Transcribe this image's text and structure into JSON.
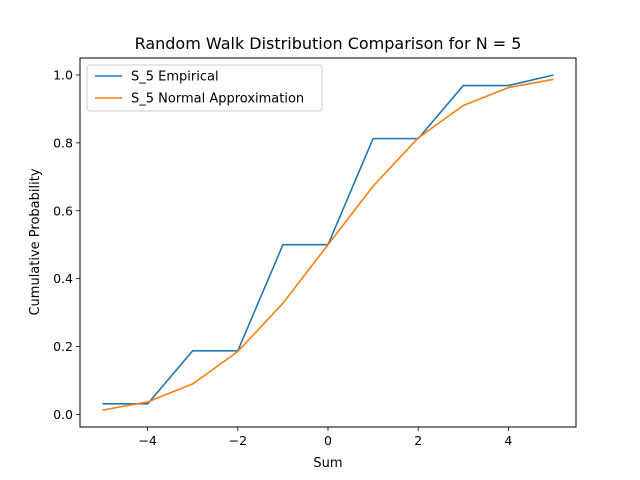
{
  "chart_data": {
    "type": "line",
    "title": "Random Walk Distribution Comparison for N = 5",
    "xlabel": "Sum",
    "ylabel": "Cumulative Probability",
    "xlim": [
      -5.5,
      5.5
    ],
    "ylim": [
      -0.037,
      1.05
    ],
    "xticks": [
      -4,
      -2,
      0,
      2,
      4
    ],
    "xtick_labels": [
      "−4",
      "−2",
      "0",
      "2",
      "4"
    ],
    "yticks": [
      0.0,
      0.2,
      0.4,
      0.6,
      0.8,
      1.0
    ],
    "ytick_labels": [
      "0.0",
      "0.2",
      "0.4",
      "0.6",
      "0.8",
      "1.0"
    ],
    "grid": false,
    "legend_position": "top-left",
    "x": [
      -5,
      -4,
      -3,
      -2,
      -1,
      0,
      1,
      2,
      3,
      4,
      5
    ],
    "series": [
      {
        "name": "S_5 Empirical",
        "color": "#1f77b4",
        "values": [
          0.03125,
          0.03125,
          0.1875,
          0.1875,
          0.5,
          0.5,
          0.8125,
          0.8125,
          0.96875,
          0.96875,
          1.0
        ]
      },
      {
        "name": "S_5 Normal Approximation",
        "color": "#ff7f0e",
        "values": [
          0.0127,
          0.0371,
          0.0899,
          0.1855,
          0.3274,
          0.5,
          0.6726,
          0.8145,
          0.9101,
          0.9629,
          0.9873
        ]
      }
    ]
  }
}
